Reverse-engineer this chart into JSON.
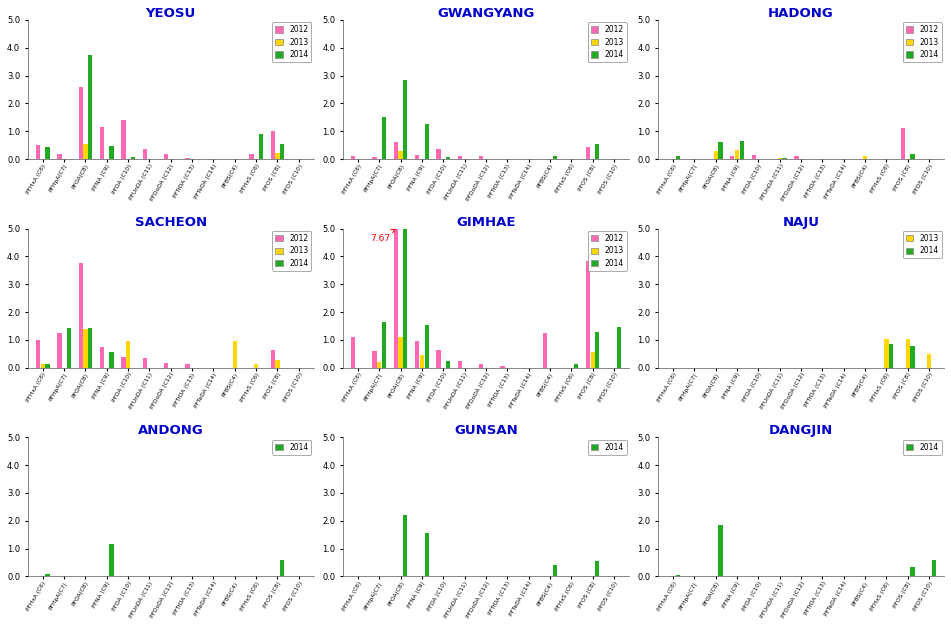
{
  "x_labels": [
    "PFHxA (C6)",
    "PFHpA(C7)",
    "PFOA(C8)",
    "PFNA (C9)",
    "PFDA (C10)",
    "PFUnDA (C11)",
    "PFDoDA (C12)",
    "PFTrDA (C13)",
    "PFTeDA (C14)",
    "PFBS(C4)",
    "PFHxS (C6)",
    "PFOS (C8)",
    "PFDS (C10)"
  ],
  "title_color": "#0000CC",
  "bar_colors": {
    "2012": "#FF69B4",
    "2013": "#FFD700",
    "2014": "#22AA22"
  },
  "background_color": "#FFFFFF",
  "subplots": [
    {
      "title": "YEOSU",
      "years": [
        "2012",
        "2013",
        "2014"
      ],
      "data": {
        "2012": [
          0.5,
          0.2,
          2.6,
          1.15,
          1.4,
          0.38,
          0.18,
          0.05,
          0.0,
          0.0,
          0.18,
          1.02,
          0.0
        ],
        "2013": [
          0.0,
          0.0,
          0.55,
          0.0,
          0.0,
          0.0,
          0.0,
          0.0,
          0.0,
          0.0,
          0.0,
          0.22,
          0.0
        ],
        "2014": [
          0.42,
          0.0,
          3.75,
          0.47,
          0.08,
          0.0,
          0.0,
          0.0,
          0.0,
          0.0,
          0.92,
          0.55,
          0.0
        ]
      }
    },
    {
      "title": "GWANGYANG",
      "years": [
        "2012",
        "2013",
        "2014"
      ],
      "data": {
        "2012": [
          0.12,
          0.08,
          0.6,
          0.15,
          0.38,
          0.12,
          0.12,
          0.02,
          0.0,
          0.0,
          0.0,
          0.42,
          0.0
        ],
        "2013": [
          0.0,
          0.0,
          0.28,
          0.0,
          0.0,
          0.0,
          0.0,
          0.0,
          0.0,
          0.0,
          0.0,
          0.0,
          0.0
        ],
        "2014": [
          0.0,
          1.5,
          2.85,
          1.25,
          0.08,
          0.0,
          0.0,
          0.0,
          0.0,
          0.12,
          0.0,
          0.55,
          0.0
        ]
      }
    },
    {
      "title": "HADONG",
      "years": [
        "2012",
        "2013",
        "2014"
      ],
      "data": {
        "2012": [
          0.0,
          0.0,
          0.0,
          0.12,
          0.15,
          0.0,
          0.12,
          0.0,
          0.0,
          0.0,
          0.0,
          1.12,
          0.0
        ],
        "2013": [
          0.0,
          0.0,
          0.28,
          0.32,
          0.0,
          0.05,
          0.0,
          0.0,
          0.0,
          0.12,
          0.0,
          0.0,
          0.0
        ],
        "2014": [
          0.12,
          0.0,
          0.6,
          0.65,
          0.02,
          0.05,
          0.0,
          0.0,
          0.0,
          0.0,
          0.0,
          0.2,
          0.0
        ]
      }
    },
    {
      "title": "SACHEON",
      "years": [
        "2012",
        "2013",
        "2014"
      ],
      "data": {
        "2012": [
          1.0,
          1.25,
          3.75,
          0.75,
          0.4,
          0.35,
          0.18,
          0.12,
          0.0,
          0.0,
          0.0,
          0.65,
          0.0
        ],
        "2013": [
          0.12,
          0.0,
          1.4,
          0.0,
          0.95,
          0.0,
          0.0,
          0.0,
          0.0,
          0.95,
          0.12,
          0.28,
          0.0
        ],
        "2014": [
          0.15,
          1.42,
          1.42,
          0.55,
          0.0,
          0.0,
          0.0,
          0.0,
          0.0,
          0.0,
          0.0,
          0.0,
          0.0
        ]
      }
    },
    {
      "title": "GIMHAE",
      "years": [
        "2012",
        "2013",
        "2014"
      ],
      "annotation": {
        "value": "7.67",
        "bar_idx": 2,
        "year": "2012"
      },
      "data": {
        "2012": [
          1.12,
          0.6,
          5.0,
          0.95,
          0.65,
          0.25,
          0.15,
          0.05,
          0.0,
          1.25,
          0.0,
          3.85,
          0.0
        ],
        "2013": [
          0.0,
          0.22,
          1.1,
          0.45,
          0.0,
          0.0,
          0.0,
          0.0,
          0.0,
          0.0,
          0.0,
          0.55,
          0.0
        ],
        "2014": [
          0.0,
          1.65,
          5.0,
          1.52,
          0.25,
          0.0,
          0.0,
          0.0,
          0.0,
          0.0,
          0.12,
          1.28,
          1.45
        ]
      }
    },
    {
      "title": "NAJU",
      "years": [
        "2013",
        "2014"
      ],
      "data": {
        "2012": [
          0.0,
          0.0,
          0.0,
          0.0,
          0.0,
          0.0,
          0.0,
          0.0,
          0.0,
          0.0,
          0.0,
          0.0,
          0.0
        ],
        "2013": [
          0.0,
          0.0,
          0.0,
          0.0,
          0.0,
          0.0,
          0.0,
          0.0,
          0.0,
          0.0,
          1.05,
          1.05,
          0.5
        ],
        "2014": [
          0.0,
          0.0,
          0.0,
          0.0,
          0.0,
          0.0,
          0.0,
          0.0,
          0.0,
          0.0,
          0.85,
          0.78,
          0.0
        ]
      }
    },
    {
      "title": "ANDONG",
      "years": [
        "2014"
      ],
      "data": {
        "2012": [
          0.0,
          0.0,
          0.0,
          0.0,
          0.0,
          0.0,
          0.0,
          0.0,
          0.0,
          0.0,
          0.0,
          0.0,
          0.0
        ],
        "2013": [
          0.0,
          0.0,
          0.0,
          0.0,
          0.0,
          0.0,
          0.0,
          0.0,
          0.0,
          0.0,
          0.0,
          0.0,
          0.0
        ],
        "2014": [
          0.08,
          0.0,
          0.0,
          1.18,
          0.0,
          0.0,
          0.0,
          0.0,
          0.0,
          0.0,
          0.0,
          0.58,
          0.0
        ]
      }
    },
    {
      "title": "GUNSAN",
      "years": [
        "2014"
      ],
      "data": {
        "2012": [
          0.0,
          0.0,
          0.0,
          0.0,
          0.0,
          0.0,
          0.0,
          0.0,
          0.0,
          0.0,
          0.0,
          0.0,
          0.0
        ],
        "2013": [
          0.0,
          0.0,
          0.0,
          0.0,
          0.0,
          0.0,
          0.0,
          0.0,
          0.0,
          0.0,
          0.0,
          0.0,
          0.0
        ],
        "2014": [
          0.0,
          0.0,
          2.2,
          1.55,
          0.0,
          0.0,
          0.0,
          0.0,
          0.0,
          0.42,
          0.0,
          0.55,
          0.0
        ]
      }
    },
    {
      "title": "DANGJIN",
      "years": [
        "2014"
      ],
      "data": {
        "2012": [
          0.0,
          0.0,
          0.0,
          0.0,
          0.0,
          0.0,
          0.0,
          0.0,
          0.0,
          0.0,
          0.0,
          0.0,
          0.0
        ],
        "2013": [
          0.0,
          0.0,
          0.0,
          0.0,
          0.0,
          0.0,
          0.0,
          0.0,
          0.0,
          0.0,
          0.0,
          0.0,
          0.0
        ],
        "2014": [
          0.05,
          0.0,
          1.85,
          0.0,
          0.0,
          0.0,
          0.0,
          0.0,
          0.0,
          0.0,
          0.0,
          0.35,
          0.58
        ]
      }
    }
  ]
}
